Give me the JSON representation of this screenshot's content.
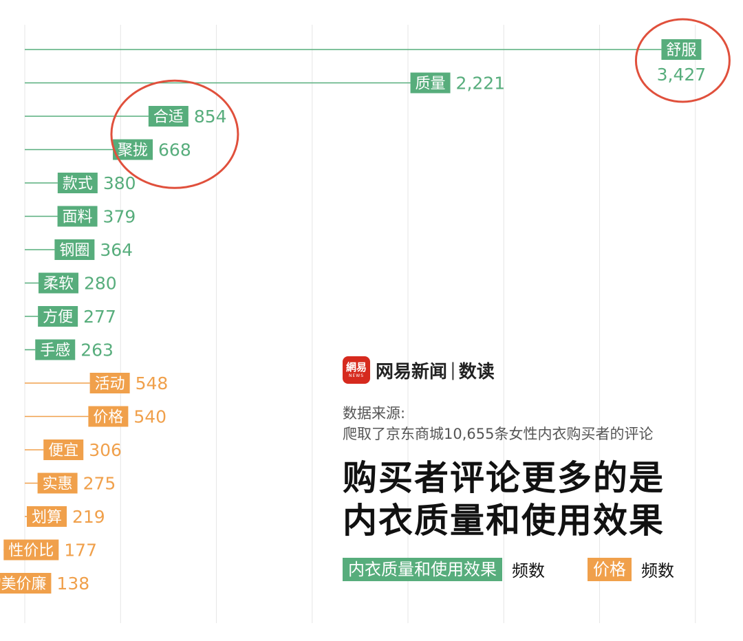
{
  "chart_data": {
    "type": "bar",
    "categories": [
      "舒服",
      "质量",
      "合适",
      "聚拢",
      "款式",
      "面料",
      "钢圈",
      "柔软",
      "方便",
      "手感",
      "活动",
      "价格",
      "便宜",
      "实惠",
      "划算",
      "性价比",
      "物美价廉"
    ],
    "values": [
      3427,
      2221,
      854,
      668,
      380,
      379,
      364,
      280,
      277,
      263,
      548,
      540,
      306,
      275,
      219,
      177,
      138
    ],
    "value_labels": [
      "3,427",
      "2,221",
      "854",
      "668",
      "380",
      "379",
      "364",
      "280",
      "277",
      "263",
      "548",
      "540",
      "306",
      "275",
      "219",
      "177",
      "138"
    ],
    "groups": [
      "quality",
      "quality",
      "quality",
      "quality",
      "quality",
      "quality",
      "quality",
      "quality",
      "quality",
      "quality",
      "price",
      "price",
      "price",
      "price",
      "price",
      "price",
      "price"
    ],
    "colors": {
      "quality": "#57ad7c",
      "price": "#f0a04b",
      "highlight": "#e0503c",
      "grid": "#e6e6e6"
    },
    "highlighted": [
      "舒服",
      "合适",
      "聚拢"
    ],
    "xlim": [
      0,
      3600
    ],
    "grid": true,
    "legend": [
      {
        "label": "内衣质量和使用效果",
        "suffix": "频数",
        "group": "quality"
      },
      {
        "label": "价格",
        "suffix": "频数",
        "group": "price"
      }
    ]
  },
  "brand": {
    "logo_main": "網易",
    "logo_sub": "NEWS",
    "name": "网易新闻",
    "separator": "|",
    "sub": "数读"
  },
  "source": {
    "label": "数据来源:",
    "text": "爬取了京东商城10,655条女性内衣购买者的评论"
  },
  "headline": {
    "line1": "购买者评论更多的是",
    "line2": "内衣质量和使用效果"
  }
}
